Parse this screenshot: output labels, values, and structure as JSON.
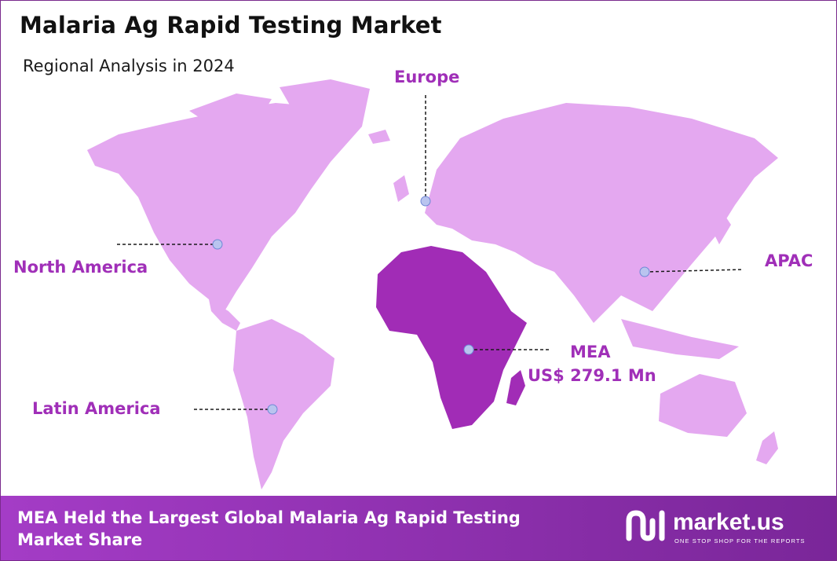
{
  "header": {
    "title": "Malaria Ag Rapid Testing Market",
    "subtitle": "Regional Analysis in 2024"
  },
  "regions": [
    {
      "id": "north-america",
      "label": "North America",
      "highlighted": false
    },
    {
      "id": "europe",
      "label": "Europe",
      "highlighted": false
    },
    {
      "id": "apac",
      "label": "APAC",
      "highlighted": false
    },
    {
      "id": "latin-america",
      "label": "Latin America",
      "highlighted": false
    },
    {
      "id": "mea",
      "label": "MEA",
      "value": "US$  279.1 Mn",
      "highlighted": true
    }
  ],
  "colors": {
    "land": "#e4a8f0",
    "highlight": "#a12cb6",
    "label": "#a02fb8",
    "marker": "#b9c4ef",
    "footer_start": "#a43cc6",
    "footer_end": "#7a2699"
  },
  "footer": {
    "text": "MEA Held the Largest Global Malaria Ag Rapid Testing Market Share",
    "brand": "market.us",
    "tagline": "ONE STOP SHOP FOR THE REPORTS",
    "logo_icon": "market-us-logo-icon"
  }
}
